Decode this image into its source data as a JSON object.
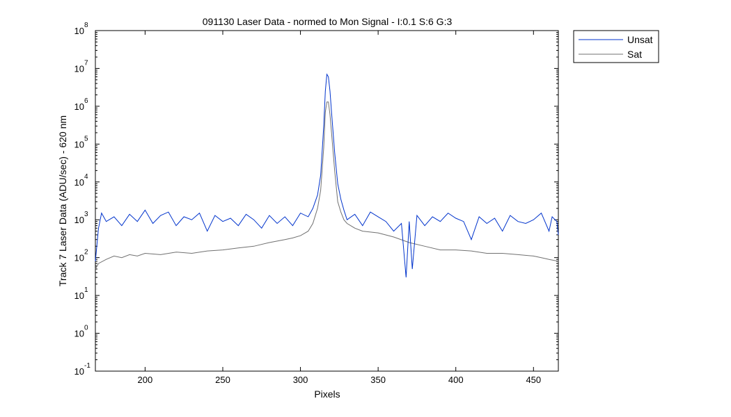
{
  "chart_data": {
    "type": "line",
    "title": "091130 Laser Data - normed to Mon Signal -   I:0.1  S:6  G:3",
    "xlabel": "Pixels",
    "ylabel": "Track 7 Laser Data (ADU/sec) - 620 nm",
    "xlim": [
      168,
      466
    ],
    "ylim_log10": [
      -1,
      8
    ],
    "y_scale": "log",
    "x_ticks": [
      200,
      250,
      300,
      350,
      400,
      450
    ],
    "y_tick_labels": [
      {
        "base": "10",
        "exp": "8"
      },
      {
        "base": "10",
        "exp": "7"
      },
      {
        "base": "10",
        "exp": "6"
      },
      {
        "base": "10",
        "exp": "5"
      },
      {
        "base": "10",
        "exp": "4"
      },
      {
        "base": "10",
        "exp": "3"
      },
      {
        "base": "10",
        "exp": "2"
      },
      {
        "base": "10",
        "exp": "1"
      },
      {
        "base": "10",
        "exp": "0"
      },
      {
        "base": "10",
        "exp": "-1"
      }
    ],
    "legend_position": "outside-top-right",
    "grid": false,
    "series": [
      {
        "name": "Unsat",
        "color": "#0033cc",
        "x": [
          168,
          170,
          172,
          175,
          180,
          185,
          190,
          195,
          200,
          205,
          210,
          215,
          220,
          225,
          230,
          235,
          240,
          245,
          250,
          255,
          260,
          265,
          270,
          275,
          280,
          285,
          290,
          295,
          300,
          305,
          308,
          311,
          313,
          315,
          316,
          317,
          318,
          319,
          320,
          322,
          324,
          326,
          328,
          330,
          335,
          340,
          345,
          350,
          355,
          360,
          365,
          368,
          370,
          372,
          375,
          380,
          385,
          390,
          395,
          400,
          405,
          410,
          415,
          420,
          425,
          430,
          435,
          440,
          445,
          450,
          455,
          460,
          462,
          465,
          466
        ],
        "y": [
          80,
          600,
          1500,
          900,
          1200,
          700,
          1400,
          900,
          1800,
          800,
          1300,
          1600,
          700,
          1200,
          1000,
          1500,
          500,
          1300,
          900,
          1100,
          700,
          1400,
          1000,
          600,
          1300,
          800,
          1200,
          700,
          1500,
          1200,
          2000,
          4500,
          15000,
          300000,
          2500000,
          7000000,
          6000000,
          2500000,
          700000,
          60000,
          9000,
          3500,
          1800,
          1000,
          1400,
          700,
          1600,
          1200,
          900,
          500,
          800,
          30,
          900,
          50,
          1300,
          700,
          1200,
          900,
          1500,
          1100,
          900,
          300,
          1200,
          800,
          1100,
          500,
          1300,
          900,
          800,
          1000,
          1500,
          500,
          1200,
          900,
          400
        ]
      },
      {
        "name": "Sat",
        "color": "#707070",
        "x": [
          168,
          170,
          175,
          180,
          185,
          190,
          195,
          200,
          210,
          220,
          230,
          240,
          250,
          260,
          270,
          280,
          290,
          295,
          300,
          305,
          308,
          311,
          313,
          315,
          316,
          317,
          318,
          319,
          320,
          322,
          324,
          326,
          328,
          330,
          335,
          340,
          350,
          360,
          370,
          380,
          390,
          400,
          410,
          420,
          430,
          440,
          450,
          455,
          460,
          466
        ],
        "y": [
          50,
          70,
          90,
          110,
          100,
          120,
          110,
          130,
          120,
          140,
          130,
          150,
          160,
          180,
          200,
          250,
          300,
          330,
          380,
          500,
          800,
          2000,
          6000,
          80000,
          700000,
          1300000,
          1300000,
          600000,
          200000,
          20000,
          3000,
          1600,
          1000,
          800,
          600,
          500,
          450,
          350,
          250,
          200,
          160,
          160,
          150,
          130,
          130,
          120,
          110,
          100,
          90,
          80
        ]
      }
    ]
  }
}
